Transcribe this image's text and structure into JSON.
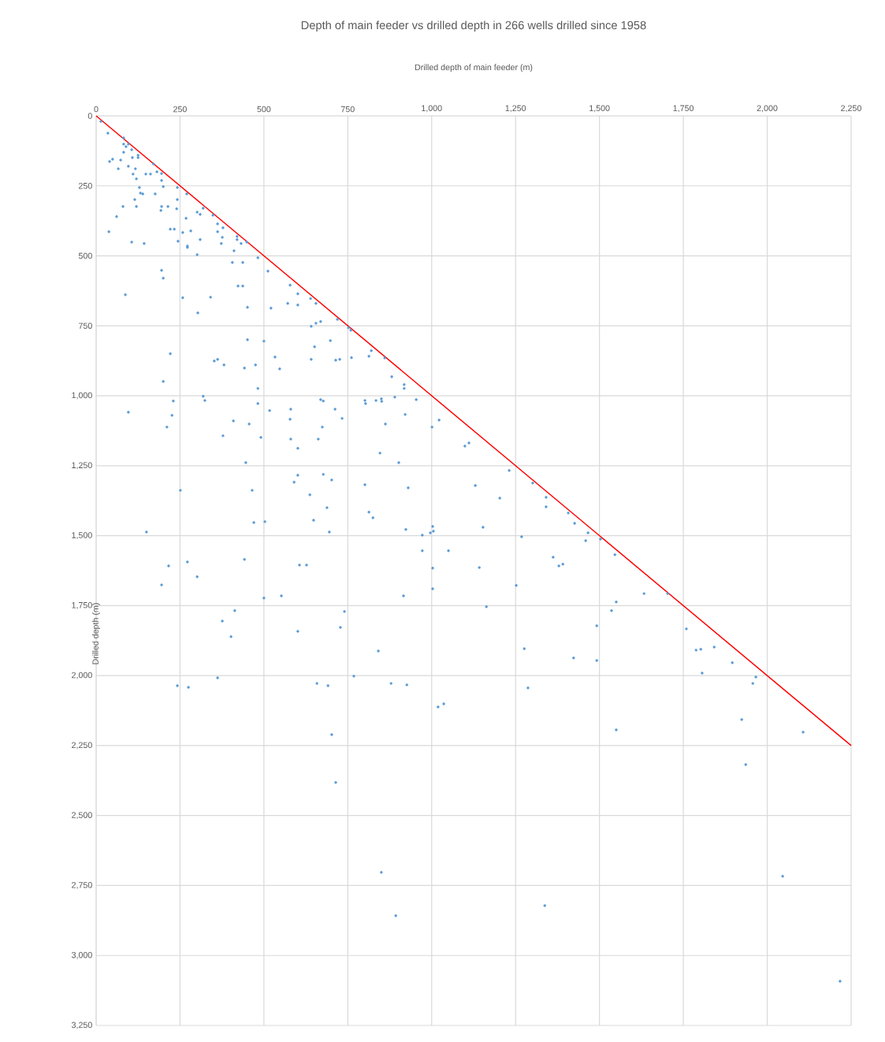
{
  "chart_data": {
    "type": "scatter",
    "title": "Depth of main feeder vs drilled depth in 266 wells drilled since 1958",
    "xlabel": "Drilled depth of main feeder (m)",
    "ylabel": "Drilled depth (m)",
    "xlim": [
      0,
      2250
    ],
    "ylim": [
      3250,
      0
    ],
    "xticks": [
      0,
      250,
      500,
      750,
      {
        "value": 1000,
        "label": "1,000"
      },
      {
        "value": 1250,
        "label": "1,250"
      },
      {
        "value": 1500,
        "label": "1,500"
      },
      {
        "value": 1750,
        "label": "1,750"
      },
      {
        "value": 2000,
        "label": "2,000"
      },
      {
        "value": 2250,
        "label": "2,250"
      }
    ],
    "yticks": [
      0,
      250,
      500,
      750,
      {
        "value": 1000,
        "label": "1,000"
      },
      {
        "value": 1250,
        "label": "1,250"
      },
      {
        "value": 1500,
        "label": "1,500"
      },
      {
        "value": 1750,
        "label": "1,750"
      },
      {
        "value": 2000,
        "label": "2,000"
      },
      {
        "value": 2250,
        "label": "2,250"
      },
      {
        "value": 2500,
        "label": "2,500"
      },
      {
        "value": 2750,
        "label": "2,750"
      },
      {
        "value": 3000,
        "label": "3,000"
      },
      {
        "value": 3250,
        "label": "3,250"
      }
    ],
    "grid": true,
    "series": [
      {
        "type": "scatter",
        "color": "#5b9bd5",
        "marker": "circle",
        "x": [
          14,
          35,
          82,
          82,
          89,
          96,
          106,
          82,
          125,
          125,
          108,
          49,
          40,
          73,
          96,
          117,
          66,
          110,
          148,
          162,
          120,
          171,
          181,
          195,
          195,
          200,
          129,
          132,
          139,
          176,
          242,
          270,
          242,
          115,
          120,
          80,
          195,
          193,
          214,
          240,
          61,
          38,
          106,
          143,
          221,
          233,
          244,
          258,
          268,
          282,
          272,
          272,
          301,
          310,
          301,
          310,
          319,
          348,
          362,
          378,
          362,
          376,
          373,
          420,
          420,
          432,
          449,
          411,
          482,
          406,
          437,
          512,
          195,
          200,
          423,
          437,
          87,
          258,
          341,
          451,
          303,
          521,
          578,
          601,
          571,
          601,
          639,
          655,
          719,
          752,
          759,
          641,
          655,
          669,
          698,
          651,
          641,
          714,
          726,
          761,
          820,
          813,
          451,
          500,
          221,
          200,
          352,
          362,
          381,
          442,
          475,
          533,
          547,
          482,
          319,
          324,
          230,
          482,
          669,
          677,
          801,
          803,
          834,
          850,
          851,
          1001,
          1022,
          1099,
          1111,
          1231,
          1301,
          517,
          580,
          578,
          456,
          409,
          378,
          491,
          580,
          674,
          662,
          601,
          712,
          733,
          890,
          954,
          918,
          918,
          881,
          862,
          921,
          846,
          902,
          446,
          465,
          601,
          590,
          677,
          702,
          637,
          801,
          930,
          1130,
          1203,
          688,
          813,
          825,
          648,
          503,
          470,
          695,
          923,
          972,
          996,
          1005,
          1003,
          1153,
          1268,
          442,
          606,
          627,
          972,
          1050,
          860,
          96,
          226,
          211,
          251,
          150,
          216,
          195,
          272,
          301,
          500,
          552,
          1003,
          1003,
          916,
          413,
          376,
          402,
          601,
          740,
          728,
          841,
          362,
          242,
          275,
          658,
          691,
          768,
          879,
          926,
          1019,
          1036,
          1276,
          1423,
          1492,
          1287,
          702,
          1550,
          714,
          850,
          893,
          1337,
          1788,
          1802,
          1842,
          1806,
          1896,
          1966,
          1957,
          1924,
          1936,
          2107,
          2046,
          2217,
          1341,
          1341,
          1407,
          1426,
          1466,
          1459,
          1503,
          1142,
          1252,
          1163,
          1362,
          1379,
          1391,
          1546,
          1633,
          1703,
          1550,
          1536,
          1492,
          1759
        ],
        "values": [
          20,
          62,
          79,
          101,
          110,
          101,
          121,
          130,
          141,
          149,
          149,
          155,
          163,
          158,
          180,
          189,
          189,
          208,
          208,
          208,
          225,
          172,
          200,
          206,
          231,
          253,
          256,
          276,
          279,
          279,
          256,
          279,
          299,
          299,
          324,
          324,
          324,
          338,
          324,
          332,
          360,
          414,
          451,
          456,
          405,
          405,
          448,
          417,
          366,
          411,
          465,
          470,
          496,
          442,
          344,
          352,
          330,
          355,
          386,
          400,
          414,
          434,
          456,
          431,
          442,
          456,
          451,
          482,
          507,
          524,
          524,
          555,
          552,
          580,
          608,
          608,
          639,
          650,
          648,
          684,
          704,
          687,
          605,
          636,
          670,
          676,
          653,
          670,
          727,
          757,
          766,
          752,
          741,
          735,
          803,
          825,
          870,
          873,
          870,
          864,
          839,
          859,
          800,
          805,
          850,
          949,
          876,
          870,
          890,
          901,
          890,
          862,
          904,
          974,
          1002,
          1017,
          1019,
          1028,
          1014,
          1019,
          1017,
          1028,
          1017,
          1011,
          1020,
          1112,
          1087,
          1180,
          1169,
          1267,
          1312,
          1053,
          1048,
          1084,
          1101,
          1090,
          1143,
          1149,
          1155,
          1112,
          1155,
          1188,
          1048,
          1081,
          1005,
          1014,
          960,
          974,
          932,
          1101,
          1067,
          1205,
          1239,
          1239,
          1338,
          1284,
          1309,
          1281,
          1301,
          1354,
          1318,
          1329,
          1321,
          1366,
          1400,
          1416,
          1436,
          1445,
          1450,
          1453,
          1487,
          1478,
          1498,
          1490,
          1484,
          1467,
          1470,
          1504,
          1585,
          1605,
          1605,
          1554,
          1554,
          865,
          1059,
          1070,
          1112,
          1338,
          1487,
          1608,
          1676,
          1594,
          1647,
          1723,
          1715,
          1616,
          1690,
          1715,
          1768,
          1805,
          1861,
          1842,
          1771,
          1828,
          1912,
          2008,
          2036,
          2042,
          2028,
          2036,
          2002,
          2028,
          2033,
          2112,
          2101,
          1904,
          1937,
          1946,
          2044,
          2211,
          2194,
          2382,
          2703,
          2858,
          2822,
          1909,
          1906,
          1898,
          1991,
          1954,
          2005,
          2028,
          2157,
          2318,
          2202,
          2717,
          3092,
          1363,
          1397,
          1419,
          1456,
          1490,
          1518,
          1512,
          1614,
          1678,
          1754,
          1577,
          1608,
          1602,
          1568,
          1707,
          1707,
          1737,
          1768,
          1822,
          1833
        ]
      },
      {
        "type": "line",
        "color": "#ff0000",
        "marker": "none",
        "x": [
          0,
          2250
        ],
        "values": [
          0,
          2250
        ]
      }
    ]
  }
}
